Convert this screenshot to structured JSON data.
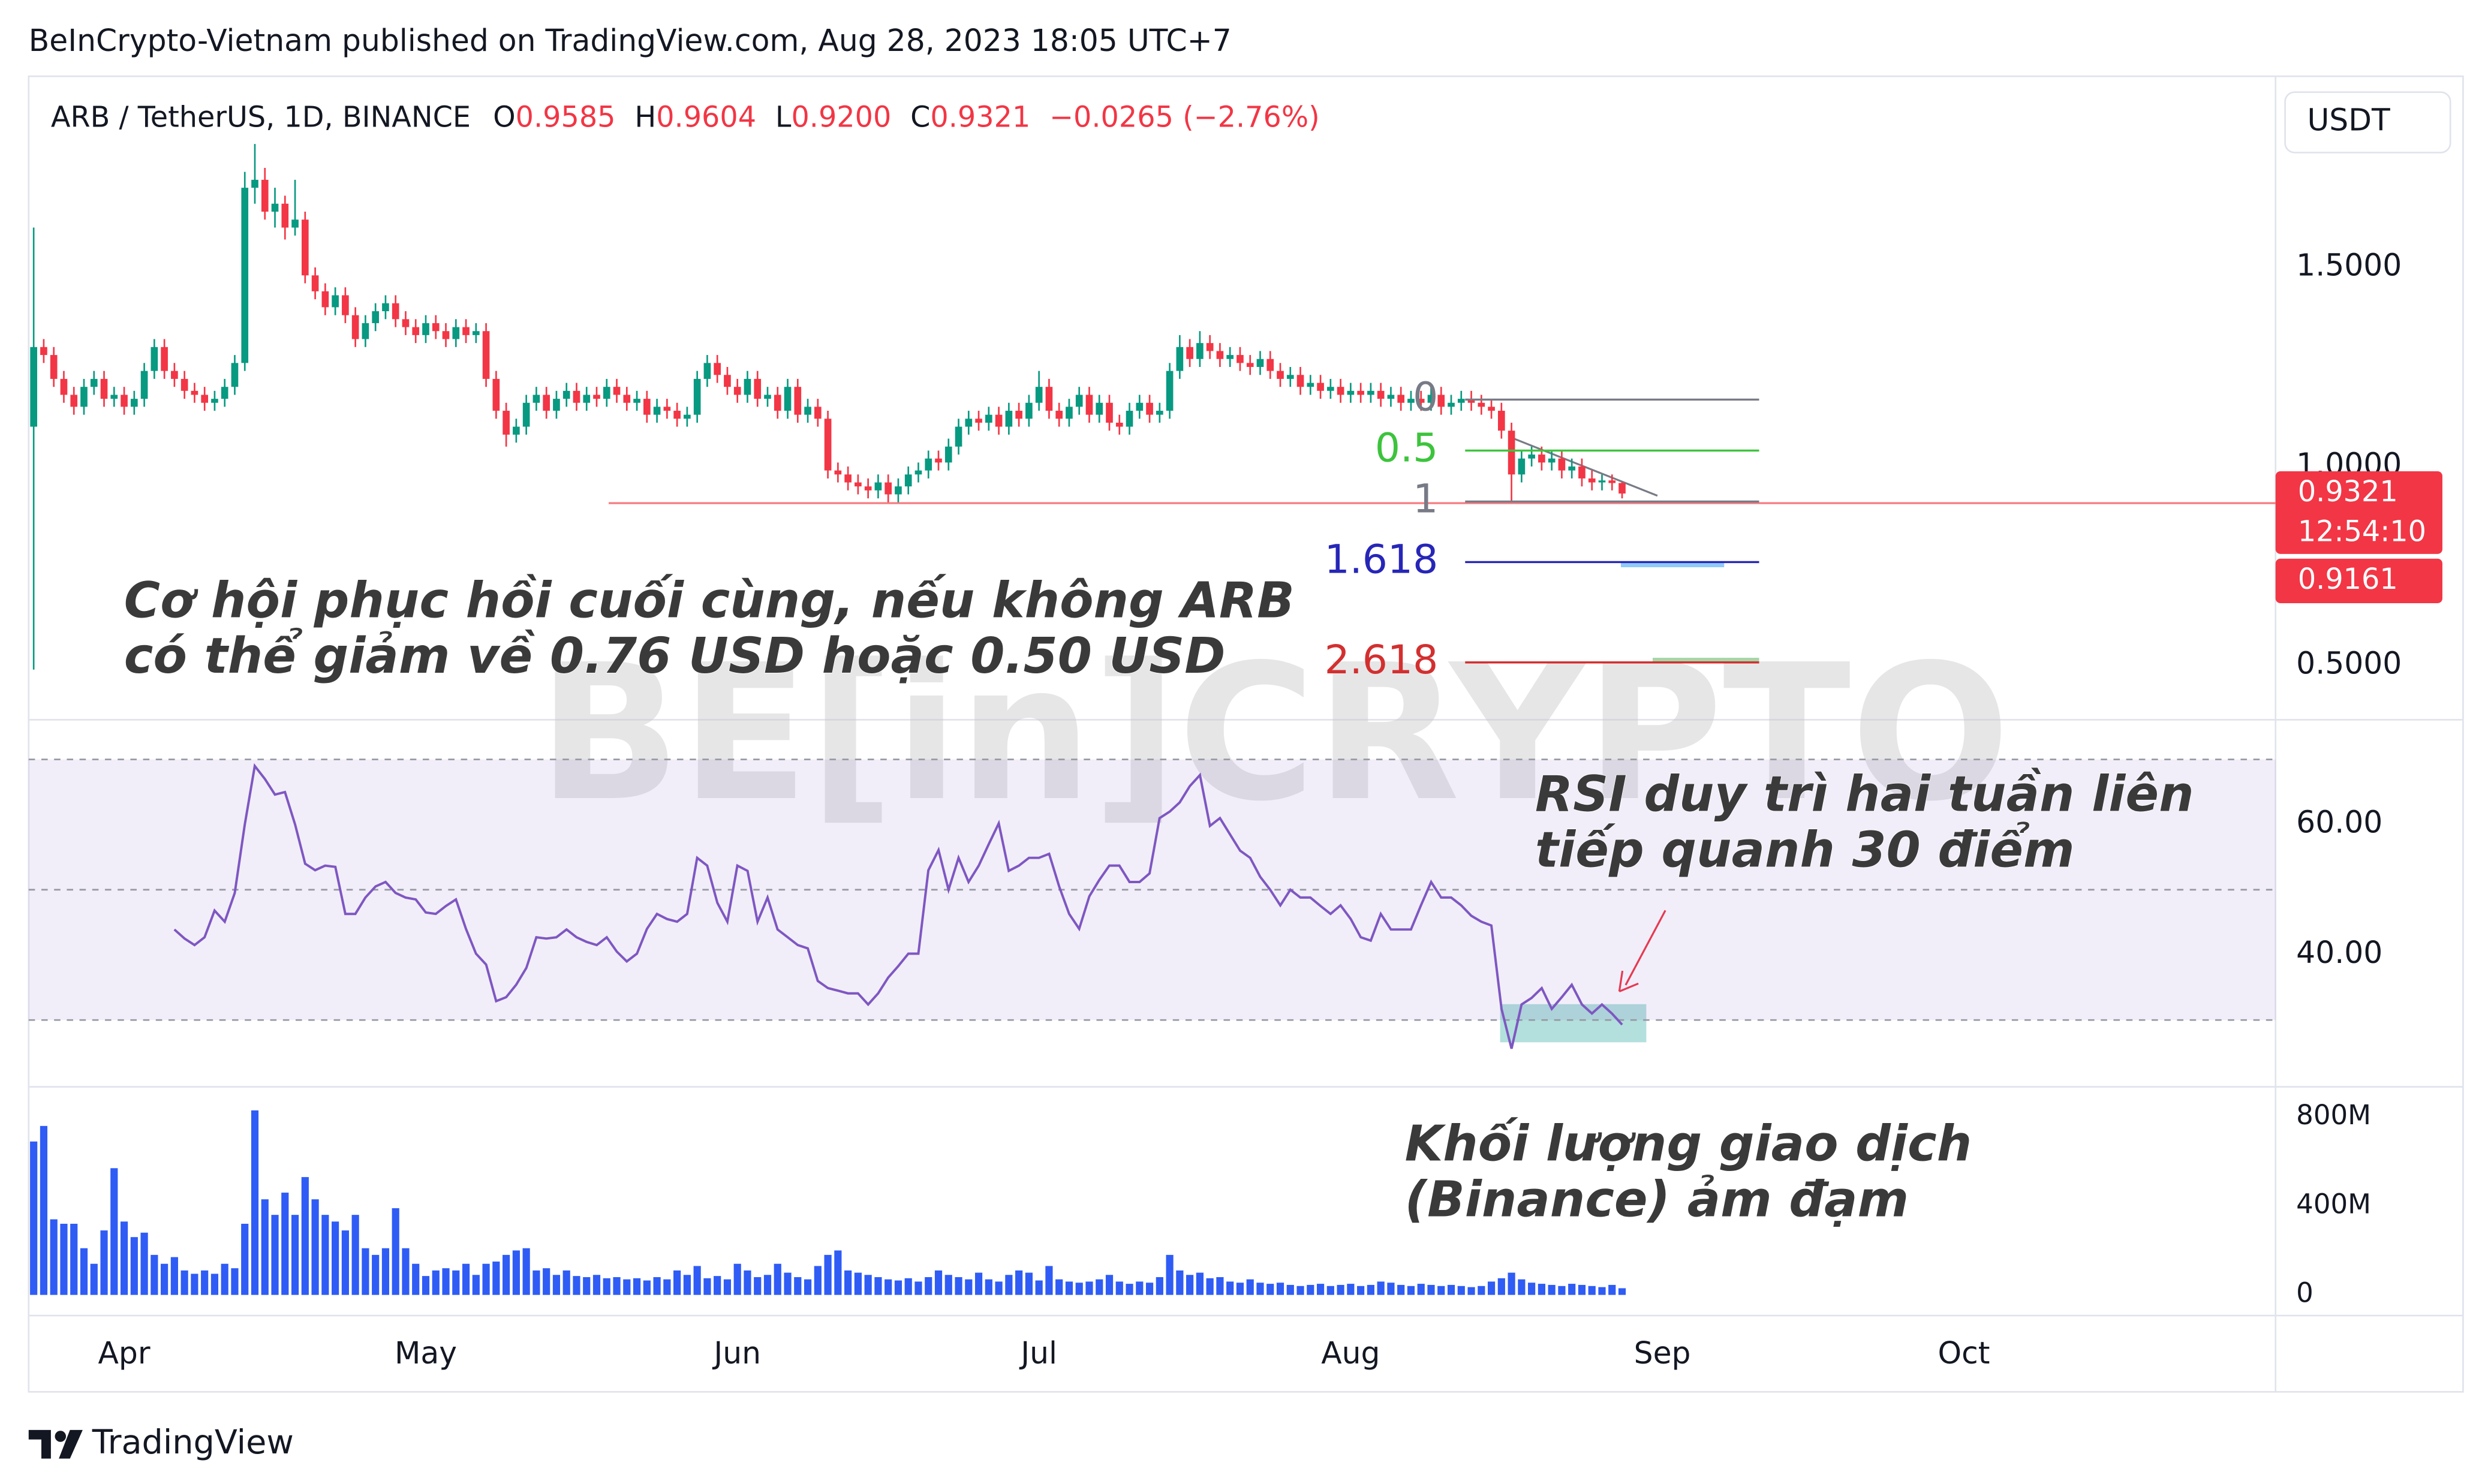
{
  "header": "BeInCrypto-Vietnam published on TradingView.com, Aug 28, 2023 18:05 UTC+7",
  "footer": "TradingView",
  "watermark": "BE[in]CRYPTO",
  "chart_data": [
    {
      "type": "candlestick",
      "symbol": "ARB / TetherUS, 1D, BINANCE",
      "currency": "USDT",
      "legend": [
        {
          "key": "O",
          "value": "0.9585"
        },
        {
          "key": "H",
          "value": "0.9604"
        },
        {
          "key": "L",
          "value": "0.9200"
        },
        {
          "key": "C",
          "value": "0.9321"
        }
      ],
      "change": "−0.0265 (−2.76%)",
      "colors": {
        "up": "#089981",
        "down": "#f23645"
      },
      "xlim": [
        -0.5,
        223
      ],
      "xticks": [
        {
          "value": 9,
          "label": "Apr"
        },
        {
          "value": 39,
          "label": "May"
        },
        {
          "value": 70,
          "label": "Jun"
        },
        {
          "value": 100,
          "label": "Jul"
        },
        {
          "value": 131,
          "label": "Aug"
        },
        {
          "value": 162,
          "label": "Sep"
        },
        {
          "value": 192,
          "label": "Oct"
        }
      ],
      "ylim": [
        0.364,
        1.98
      ],
      "yticks": [
        {
          "value": 0.5,
          "label": "0.5000"
        },
        {
          "value": 1.0,
          "label": "1.0000"
        },
        {
          "value": 1.5,
          "label": "1.5000"
        }
      ],
      "open": [
        1.1,
        1.3,
        1.28,
        1.22,
        1.18,
        1.15,
        1.2,
        1.22,
        1.17,
        1.18,
        1.15,
        1.17,
        1.24,
        1.3,
        1.24,
        1.22,
        1.19,
        1.18,
        1.16,
        1.17,
        1.2,
        1.26,
        1.7,
        1.72,
        1.64,
        1.66,
        1.6,
        1.62,
        1.48,
        1.44,
        1.4,
        1.43,
        1.38,
        1.32,
        1.36,
        1.39,
        1.41,
        1.37,
        1.35,
        1.33,
        1.36,
        1.34,
        1.32,
        1.35,
        1.33,
        1.34,
        1.22,
        1.14,
        1.08,
        1.1,
        1.16,
        1.18,
        1.14,
        1.17,
        1.19,
        1.16,
        1.18,
        1.17,
        1.2,
        1.18,
        1.16,
        1.17,
        1.13,
        1.15,
        1.14,
        1.12,
        1.13,
        1.22,
        1.26,
        1.23,
        1.2,
        1.18,
        1.22,
        1.17,
        1.18,
        1.14,
        1.2,
        1.13,
        1.15,
        1.12,
        0.99,
        0.98,
        0.96,
        0.95,
        0.94,
        0.96,
        0.93,
        0.95,
        0.98,
        0.99,
        1.02,
        1.01,
        1.05,
        1.1,
        1.12,
        1.11,
        1.13,
        1.1,
        1.14,
        1.12,
        1.16,
        1.2,
        1.14,
        1.12,
        1.15,
        1.18,
        1.13,
        1.16,
        1.11,
        1.1,
        1.14,
        1.16,
        1.13,
        1.14,
        1.24,
        1.3,
        1.27,
        1.31,
        1.29,
        1.27,
        1.28,
        1.26,
        1.25,
        1.27,
        1.24,
        1.22,
        1.23,
        1.2,
        1.21,
        1.19,
        1.2,
        1.18,
        1.19,
        1.18,
        1.19,
        1.17,
        1.18,
        1.16,
        1.17,
        1.16,
        1.18,
        1.15,
        1.16,
        1.17,
        1.16,
        1.15,
        1.14,
        1.09,
        0.98,
        1.02,
        1.03,
        1.01,
        1.02,
        0.99,
        1.0,
        0.97,
        0.96,
        0.965,
        0.9585
      ],
      "high": [
        1.6,
        1.32,
        1.3,
        1.24,
        1.2,
        1.22,
        1.24,
        1.24,
        1.2,
        1.2,
        1.19,
        1.26,
        1.32,
        1.32,
        1.26,
        1.24,
        1.21,
        1.2,
        1.19,
        1.22,
        1.28,
        1.74,
        1.81,
        1.75,
        1.7,
        1.68,
        1.72,
        1.64,
        1.5,
        1.46,
        1.45,
        1.45,
        1.4,
        1.38,
        1.41,
        1.43,
        1.43,
        1.39,
        1.37,
        1.38,
        1.38,
        1.36,
        1.37,
        1.37,
        1.36,
        1.36,
        1.24,
        1.16,
        1.12,
        1.18,
        1.2,
        1.2,
        1.19,
        1.21,
        1.21,
        1.2,
        1.2,
        1.22,
        1.22,
        1.2,
        1.19,
        1.19,
        1.17,
        1.17,
        1.16,
        1.15,
        1.24,
        1.28,
        1.28,
        1.25,
        1.22,
        1.24,
        1.24,
        1.2,
        1.2,
        1.22,
        1.22,
        1.17,
        1.17,
        1.14,
        1.01,
        1.0,
        0.98,
        0.97,
        0.98,
        0.98,
        0.97,
        1.0,
        1.01,
        1.04,
        1.04,
        1.07,
        1.12,
        1.14,
        1.14,
        1.15,
        1.15,
        1.16,
        1.16,
        1.18,
        1.24,
        1.22,
        1.16,
        1.17,
        1.2,
        1.2,
        1.18,
        1.18,
        1.13,
        1.16,
        1.18,
        1.18,
        1.16,
        1.26,
        1.33,
        1.32,
        1.34,
        1.33,
        1.31,
        1.3,
        1.3,
        1.28,
        1.29,
        1.29,
        1.26,
        1.25,
        1.25,
        1.23,
        1.23,
        1.22,
        1.22,
        1.21,
        1.21,
        1.21,
        1.21,
        1.2,
        1.2,
        1.19,
        1.19,
        1.2,
        1.2,
        1.18,
        1.19,
        1.19,
        1.18,
        1.17,
        1.16,
        1.11,
        1.04,
        1.05,
        1.05,
        1.04,
        1.04,
        1.02,
        1.02,
        0.99,
        0.98,
        0.98,
        0.9604
      ],
      "low": [
        0.49,
        1.26,
        1.2,
        1.16,
        1.13,
        1.13,
        1.18,
        1.15,
        1.15,
        1.13,
        1.13,
        1.15,
        1.22,
        1.22,
        1.2,
        1.17,
        1.16,
        1.14,
        1.14,
        1.15,
        1.18,
        1.24,
        1.66,
        1.62,
        1.6,
        1.57,
        1.58,
        1.46,
        1.42,
        1.38,
        1.38,
        1.36,
        1.3,
        1.3,
        1.34,
        1.37,
        1.35,
        1.33,
        1.31,
        1.31,
        1.32,
        1.3,
        1.3,
        1.31,
        1.31,
        1.2,
        1.12,
        1.05,
        1.06,
        1.08,
        1.14,
        1.12,
        1.12,
        1.15,
        1.14,
        1.14,
        1.15,
        1.15,
        1.16,
        1.14,
        1.14,
        1.11,
        1.11,
        1.12,
        1.1,
        1.1,
        1.11,
        1.2,
        1.21,
        1.18,
        1.16,
        1.16,
        1.15,
        1.15,
        1.12,
        1.12,
        1.11,
        1.11,
        1.1,
        0.97,
        0.96,
        0.94,
        0.93,
        0.92,
        0.92,
        0.91,
        0.91,
        0.93,
        0.96,
        0.97,
        0.99,
        0.99,
        1.03,
        1.08,
        1.09,
        1.09,
        1.08,
        1.08,
        1.1,
        1.1,
        1.14,
        1.12,
        1.1,
        1.1,
        1.13,
        1.11,
        1.11,
        1.09,
        1.08,
        1.08,
        1.12,
        1.11,
        1.11,
        1.12,
        1.22,
        1.25,
        1.25,
        1.27,
        1.25,
        1.25,
        1.24,
        1.23,
        1.23,
        1.22,
        1.2,
        1.2,
        1.18,
        1.18,
        1.17,
        1.17,
        1.16,
        1.16,
        1.16,
        1.16,
        1.15,
        1.15,
        1.14,
        1.14,
        1.14,
        1.14,
        1.13,
        1.13,
        1.14,
        1.14,
        1.13,
        1.12,
        1.07,
        0.91,
        0.96,
        1.0,
        0.99,
        0.99,
        0.97,
        0.97,
        0.95,
        0.94,
        0.94,
        0.94,
        0.92
      ],
      "close": [
        1.3,
        1.28,
        1.22,
        1.18,
        1.15,
        1.2,
        1.22,
        1.17,
        1.18,
        1.15,
        1.17,
        1.24,
        1.3,
        1.24,
        1.22,
        1.19,
        1.18,
        1.16,
        1.17,
        1.2,
        1.26,
        1.7,
        1.72,
        1.64,
        1.66,
        1.6,
        1.62,
        1.48,
        1.44,
        1.4,
        1.43,
        1.38,
        1.32,
        1.36,
        1.39,
        1.41,
        1.37,
        1.35,
        1.33,
        1.36,
        1.34,
        1.32,
        1.35,
        1.33,
        1.34,
        1.22,
        1.14,
        1.08,
        1.1,
        1.16,
        1.18,
        1.14,
        1.17,
        1.19,
        1.16,
        1.18,
        1.17,
        1.2,
        1.18,
        1.16,
        1.17,
        1.13,
        1.15,
        1.14,
        1.12,
        1.13,
        1.22,
        1.26,
        1.23,
        1.2,
        1.18,
        1.22,
        1.17,
        1.18,
        1.14,
        1.2,
        1.13,
        1.15,
        1.12,
        0.99,
        0.98,
        0.96,
        0.95,
        0.94,
        0.96,
        0.93,
        0.95,
        0.98,
        0.99,
        1.02,
        1.01,
        1.05,
        1.1,
        1.12,
        1.11,
        1.13,
        1.1,
        1.14,
        1.12,
        1.16,
        1.2,
        1.14,
        1.12,
        1.15,
        1.18,
        1.13,
        1.16,
        1.11,
        1.1,
        1.14,
        1.16,
        1.13,
        1.14,
        1.24,
        1.3,
        1.27,
        1.31,
        1.29,
        1.27,
        1.28,
        1.26,
        1.25,
        1.27,
        1.24,
        1.22,
        1.23,
        1.2,
        1.21,
        1.19,
        1.2,
        1.18,
        1.19,
        1.18,
        1.19,
        1.17,
        1.18,
        1.16,
        1.17,
        1.16,
        1.18,
        1.15,
        1.16,
        1.17,
        1.16,
        1.15,
        1.14,
        1.09,
        0.98,
        1.02,
        1.03,
        1.01,
        1.02,
        0.99,
        1.0,
        0.97,
        0.96,
        0.965,
        0.9585,
        0.9321
      ],
      "hline": {
        "price": 0.908,
        "color": "#f77c80"
      },
      "fib": [
        {
          "label": "0",
          "price": 1.168,
          "color": "#787b86"
        },
        {
          "label": "0.5",
          "price": 1.04,
          "color": "#3cc43c"
        },
        {
          "label": "1",
          "price": 0.912,
          "color": "#787b86"
        },
        {
          "label": "1.618",
          "price": 0.76,
          "color": "#2626b8"
        },
        {
          "label": "2.618",
          "price": 0.508,
          "color": "#d32f2f"
        }
      ],
      "price_labels": [
        {
          "value": 0.9321,
          "label": "0.9321",
          "timer": "12:54:10"
        },
        {
          "value": 0.9161,
          "label": "0.9161"
        }
      ],
      "annotation": [
        "Cơ hội phục hồi cuối cùng, nếu không ARB",
        "có thể giảm về 0.76 USD hoặc 0.50 USD"
      ]
    },
    {
      "type": "line",
      "color": "#7e57c2",
      "ylim": [
        20,
        75.6
      ],
      "yticks": [
        {
          "value": 40,
          "label": "40.00"
        },
        {
          "value": 60,
          "label": "60.00"
        }
      ],
      "levels": [
        70,
        50,
        30
      ],
      "values": [
        null,
        null,
        null,
        null,
        null,
        null,
        null,
        null,
        null,
        null,
        null,
        null,
        null,
        null,
        43.9,
        42.5,
        41.5,
        42.7,
        46.8,
        45.1,
        49.5,
        60,
        69,
        67,
        64.6,
        65,
        60,
        54,
        53,
        53.7,
        53.5,
        46.3,
        46.3,
        48.8,
        50.5,
        51.2,
        49.5,
        48.8,
        48.5,
        46.5,
        46.3,
        47.5,
        48.5,
        44,
        40.2,
        38.5,
        32.9,
        33.5,
        35.4,
        38,
        42.7,
        42.5,
        42.7,
        43.9,
        42.7,
        42,
        41.5,
        42.7,
        40.5,
        39,
        40.2,
        44,
        46.3,
        45.5,
        45.1,
        46.3,
        54.9,
        53.7,
        48,
        45.1,
        53.7,
        52.9,
        45.1,
        48.8,
        43.9,
        42.7,
        41.5,
        41,
        36,
        34.9,
        34.5,
        34.1,
        34.1,
        32.4,
        34.1,
        36.5,
        38.3,
        40.2,
        40.2,
        53,
        56.1,
        50,
        54.9,
        51.2,
        53.7,
        57,
        60.2,
        52.9,
        53.7,
        54.9,
        54.9,
        55.5,
        50.5,
        46.3,
        44,
        49,
        51.5,
        53.7,
        53.7,
        51.2,
        51.2,
        52.5,
        61,
        62,
        63.4,
        65.9,
        67.6,
        59.8,
        61,
        58.5,
        56,
        54.9,
        52,
        50,
        47.6,
        50,
        48.8,
        48.8,
        47.5,
        46.3,
        47.6,
        45.5,
        42.7,
        42.2,
        46.3,
        43.9,
        43.9,
        43.9,
        47.6,
        51.2,
        48.8,
        48.8,
        47.6,
        46,
        45.1,
        44.5,
        31.7,
        25.6,
        32.4,
        33.4,
        34.9,
        31.7,
        33.5,
        35.4,
        32.4,
        31,
        32.4,
        31,
        29.3
      ],
      "annotation": [
        "RSI duy trì hai tuần liên",
        "tiếp quanh 30 điểm"
      ]
    },
    {
      "type": "bar",
      "color": "#2f5cf5",
      "ylim": [
        -93,
        929
      ],
      "yticks": [
        0,
        {
          "value": 400,
          "label": "400M"
        },
        {
          "value": 800,
          "label": "800M"
        }
      ],
      "values": [
        690,
        760,
        340,
        320,
        320,
        210,
        140,
        290,
        570,
        330,
        260,
        280,
        180,
        140,
        170,
        110,
        95,
        110,
        95,
        140,
        120,
        320,
        830,
        430,
        360,
        460,
        360,
        530,
        430,
        360,
        330,
        290,
        360,
        210,
        180,
        210,
        390,
        210,
        140,
        85,
        110,
        120,
        110,
        140,
        90,
        140,
        150,
        180,
        200,
        210,
        110,
        120,
        90,
        110,
        85,
        80,
        90,
        75,
        80,
        70,
        75,
        65,
        80,
        70,
        110,
        90,
        130,
        75,
        85,
        70,
        140,
        110,
        80,
        90,
        140,
        100,
        80,
        70,
        130,
        180,
        200,
        110,
        100,
        90,
        80,
        70,
        65,
        75,
        60,
        80,
        110,
        90,
        80,
        70,
        100,
        70,
        60,
        90,
        110,
        100,
        65,
        130,
        70,
        60,
        55,
        60,
        70,
        90,
        60,
        50,
        60,
        55,
        80,
        180,
        110,
        90,
        100,
        75,
        80,
        60,
        55,
        70,
        55,
        50,
        55,
        45,
        40,
        45,
        50,
        40,
        45,
        50,
        40,
        45,
        60,
        55,
        45,
        40,
        50,
        45,
        40,
        45,
        40,
        35,
        40,
        60,
        75,
        100,
        70,
        55,
        50,
        45,
        40,
        50,
        45,
        40,
        35,
        45,
        30
      ],
      "annotation": [
        "Khối lượng giao dịch",
        "(Binance) ảm đạm"
      ]
    }
  ]
}
